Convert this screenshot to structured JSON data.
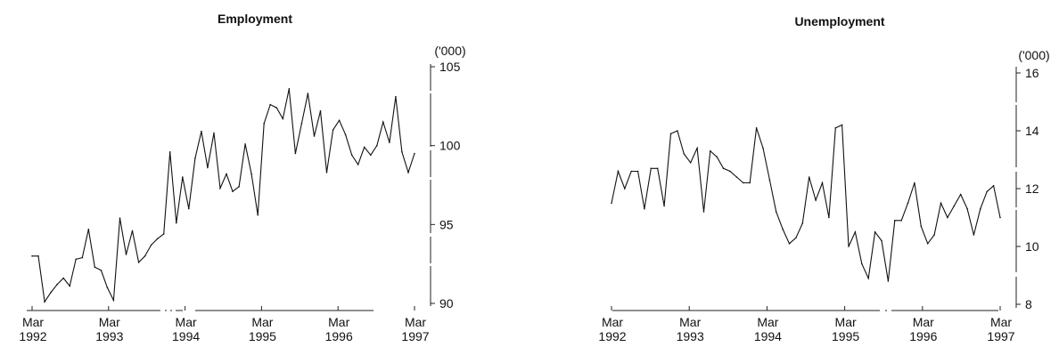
{
  "chart_data": [
    {
      "type": "line",
      "title": "Employment",
      "unit": "('000)",
      "ylim": [
        90,
        105
      ],
      "yticks": [
        "105",
        "100",
        "95",
        "90"
      ],
      "xticks": [
        [
          "Mar",
          "1992"
        ],
        [
          "Mar",
          "1993"
        ],
        [
          "Mar",
          "1994"
        ],
        [
          "Mar",
          "1995"
        ],
        [
          "Mar",
          "1996"
        ],
        [
          "Mar",
          "1997"
        ]
      ],
      "x_start": "1992-03",
      "x_end": "1997-03",
      "values": [
        93.0,
        93.0,
        90.1,
        90.7,
        91.2,
        91.6,
        91.1,
        92.8,
        92.9,
        94.7,
        92.3,
        92.1,
        91.0,
        90.2,
        95.4,
        93.1,
        94.6,
        92.6,
        93.0,
        93.7,
        94.1,
        94.4,
        99.6,
        95.1,
        98.0,
        96.0,
        99.2,
        100.9,
        98.6,
        100.8,
        97.3,
        98.2,
        97.1,
        97.4,
        100.1,
        98.2,
        95.6,
        101.4,
        102.6,
        102.4,
        101.7,
        103.6,
        99.5,
        101.4,
        103.3,
        100.6,
        102.2,
        98.3,
        101.0,
        101.6,
        100.7,
        99.4,
        98.8,
        99.9,
        99.4,
        100.0,
        101.5,
        100.2,
        103.1,
        99.6,
        98.3,
        99.5
      ]
    },
    {
      "type": "line",
      "title": "Unemployment",
      "unit": "('000)",
      "ylim": [
        8,
        16
      ],
      "yticks": [
        "16",
        "14",
        "12",
        "10",
        "8"
      ],
      "xticks": [
        [
          "Mar",
          "1992"
        ],
        [
          "Mar",
          "1993"
        ],
        [
          "Mar",
          "1994"
        ],
        [
          "Mar",
          "1995"
        ],
        [
          "Mar",
          "1996"
        ],
        [
          "Mar",
          "1997"
        ]
      ],
      "x_start": "1992-03",
      "x_end": "1997-03",
      "values": [
        11.5,
        12.6,
        12.0,
        12.6,
        12.6,
        11.3,
        12.7,
        12.7,
        11.4,
        13.9,
        14.0,
        13.2,
        12.9,
        13.4,
        11.2,
        13.3,
        13.1,
        12.7,
        12.6,
        12.4,
        12.2,
        12.2,
        14.1,
        13.4,
        12.3,
        11.2,
        10.6,
        10.1,
        10.3,
        10.8,
        12.4,
        11.6,
        12.2,
        11.0,
        14.1,
        14.2,
        10.0,
        10.5,
        9.4,
        8.9,
        10.5,
        10.2,
        8.8,
        10.9,
        10.9,
        11.5,
        12.2,
        10.7,
        10.1,
        10.4,
        11.5,
        11.0,
        11.4,
        11.8,
        11.3,
        10.4,
        11.3,
        11.9,
        12.1,
        11.0
      ]
    }
  ]
}
